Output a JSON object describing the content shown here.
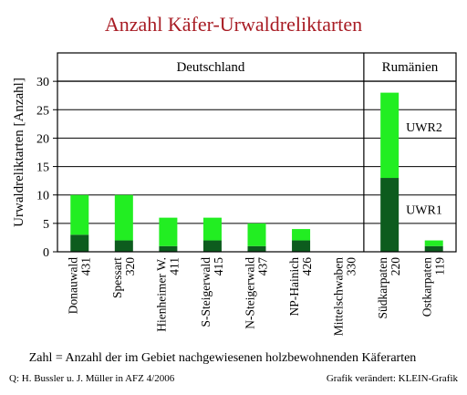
{
  "title": "Anzahl Käfer-Urwaldreliktarten",
  "footnote": "Zahl = Anzahl der im Gebiet nachgewiesenen holzbewohnenden Käferarten",
  "source_left": "Q: H. Bussler u. J. Müller  in AFZ 4/2006",
  "source_right": "Grafik verändert: KLEIN-Grafik",
  "colors": {
    "uwr1": "#0d5c1e",
    "uwr2": "#22ee22",
    "background": "#ffffff",
    "title": "#a81c24",
    "grid": "#000000"
  },
  "chart_data": {
    "type": "bar",
    "stacked": true,
    "title": "Anzahl Käfer-Urwaldreliktarten",
    "xlabel": "",
    "ylabel": "Urwaldreliktarten [Anzahl]",
    "ylim": [
      0,
      35
    ],
    "yticks": [
      0,
      5,
      10,
      15,
      20,
      25,
      30
    ],
    "grid": true,
    "groups": [
      {
        "name": "Deutschland",
        "start": 0,
        "end": 6
      },
      {
        "name": "Rumänien",
        "start": 7,
        "end": 8
      }
    ],
    "categories": [
      {
        "name": "Donauwald",
        "count": "431"
      },
      {
        "name": "Spessart",
        "count": "320"
      },
      {
        "name": "Hienheimer W.",
        "count": "411"
      },
      {
        "name": "S-Steigerwald",
        "count": "415"
      },
      {
        "name": "N-Steigerwald",
        "count": "437"
      },
      {
        "name": "NP-Hainich",
        "count": "426"
      },
      {
        "name": "Mittelschwaben",
        "count": "330"
      },
      {
        "name": "Südkarpaten",
        "count": "220"
      },
      {
        "name": "Ostkarpaten",
        "count": "119"
      }
    ],
    "series": [
      {
        "name": "UWR1",
        "color": "#0d5c1e",
        "values": [
          3,
          2,
          1,
          2,
          1,
          2,
          0,
          13,
          1
        ]
      },
      {
        "name": "UWR2",
        "color": "#22ee22",
        "values": [
          7,
          8,
          5,
          4,
          4,
          2,
          0,
          15,
          1
        ]
      }
    ],
    "annotations": [
      {
        "text": "UWR2",
        "category": 7,
        "y": 22
      },
      {
        "text": "UWR1",
        "category": 7,
        "y": 7.5
      }
    ]
  }
}
